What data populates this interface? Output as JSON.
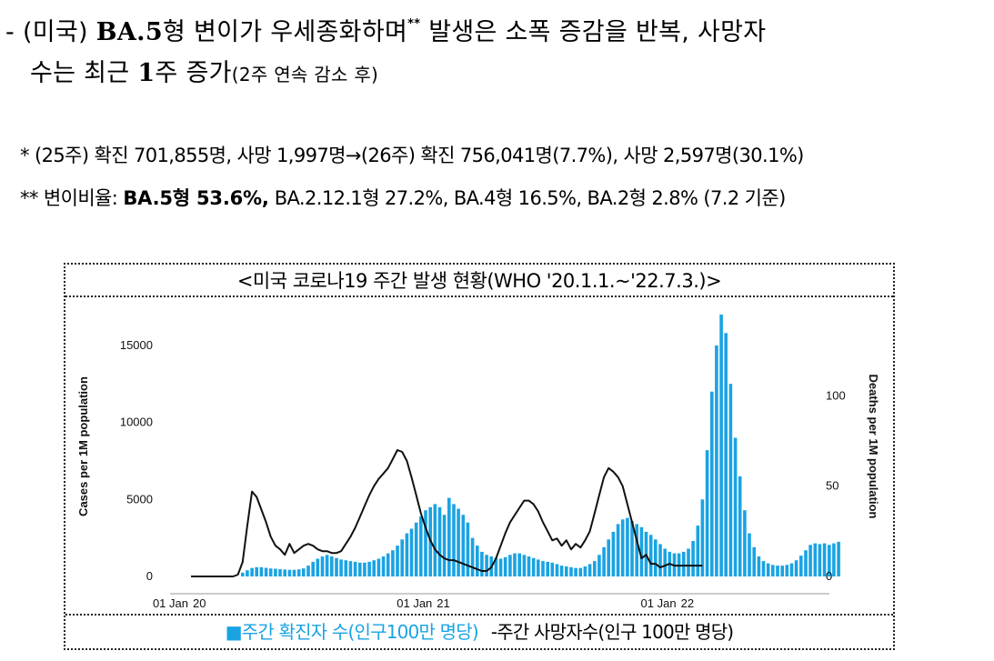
{
  "headline": {
    "dash": "- ",
    "country": "(미국) ",
    "variant": "BA.5",
    "text1": "형 변이가 우세종화하며",
    "mark": "**",
    "text2": " 발생은 소폭 증감을 반복, 사망자",
    "text3": "수는 최근 ",
    "week": "1",
    "text4": "주 증가",
    "note": "(2주 연속 감소 후)"
  },
  "notes": {
    "star1": "*",
    "line1": " (25주) 확진 701,855명, 사망 1,997명→(26주) 확진 756,041명(7.7%), 사망 2,597명(30.1%)",
    "star2": "**",
    "label2": " 변이비율: ",
    "strong2": "BA.5형 53.6%,",
    "rest2": " BA.2.12.1형 27.2%, BA.4형 16.5%, BA.2형 2.8% (7.2 기준)"
  },
  "chart": {
    "title": "<미국 코로나19 주간 발생 현황(WHO '20.1.1.~'22.7.3.)>",
    "legend_cases_label": "■주간 확진자 수(인구100만 명당)",
    "legend_deaths_label": "-주간 사망자수(인구 100만 명당)",
    "colors": {
      "cases": "#1aa3e3",
      "deaths": "#111111"
    }
  },
  "chart_data": {
    "type": "bar",
    "ylabel": "Cases per 1M population",
    "y2label": "Deaths per 1M population",
    "ylim": [
      0,
      17000
    ],
    "y2lim": [
      0,
      145
    ],
    "y_ticks": [
      0,
      5000,
      10000,
      15000
    ],
    "y2_ticks": [
      0,
      50,
      100
    ],
    "x_ticks": [
      {
        "label": "01 Jan",
        "year": "20",
        "week": 0
      },
      {
        "label": "01 Jan",
        "year": "21",
        "week": 52
      },
      {
        "label": "01 Jan",
        "year": "22",
        "week": 104
      }
    ],
    "grid": false,
    "series": [
      {
        "name": "주간 확진자 수(인구100만 명당)",
        "axis": "left",
        "values": [
          0,
          0,
          0,
          0,
          0,
          0,
          0,
          0,
          0,
          0,
          0,
          250,
          400,
          550,
          600,
          600,
          560,
          520,
          500,
          470,
          450,
          430,
          430,
          460,
          520,
          700,
          950,
          1150,
          1300,
          1400,
          1300,
          1200,
          1100,
          1050,
          1000,
          950,
          900,
          900,
          950,
          1050,
          1150,
          1300,
          1500,
          1700,
          2000,
          2400,
          2800,
          3100,
          3500,
          3900,
          4300,
          4500,
          4700,
          4500,
          4000,
          5100,
          4700,
          4400,
          4000,
          3500,
          2500,
          2000,
          1600,
          1400,
          1300,
          1200,
          1150,
          1250,
          1400,
          1500,
          1500,
          1400,
          1300,
          1200,
          1100,
          1000,
          950,
          900,
          800,
          700,
          650,
          600,
          550,
          550,
          650,
          800,
          1000,
          1400,
          1900,
          2400,
          2900,
          3400,
          3700,
          3800,
          3600,
          3400,
          3200,
          2900,
          2700,
          2400,
          2100,
          1800,
          1600,
          1500,
          1500,
          1600,
          1800,
          2300,
          3300,
          5000,
          8200,
          12000,
          15000,
          17000,
          15800,
          12500,
          9000,
          6500,
          4300,
          2800,
          1900,
          1300,
          1000,
          850,
          750,
          700,
          700,
          750,
          850,
          1050,
          1350,
          1700,
          2050,
          2150,
          2100,
          2150,
          2050,
          2150,
          2250
        ]
      },
      {
        "name": "주간 사망자수(인구 100만 명당)",
        "axis": "right",
        "values": [
          0,
          0,
          0,
          0,
          0,
          0,
          0,
          0,
          0,
          0,
          1,
          8,
          28,
          47,
          44,
          37,
          30,
          22,
          17,
          15,
          12,
          18,
          13,
          15,
          17,
          18,
          17,
          15,
          14,
          14,
          13,
          13,
          14,
          18,
          22,
          27,
          33,
          39,
          45,
          50,
          54,
          57,
          60,
          65,
          70,
          69,
          64,
          55,
          45,
          35,
          27,
          20,
          15,
          12,
          10,
          9,
          9,
          8,
          7,
          6,
          5,
          4,
          3,
          3,
          5,
          10,
          17,
          24,
          30,
          34,
          38,
          42,
          42,
          40,
          36,
          30,
          25,
          20,
          21,
          17,
          20,
          15,
          18,
          16,
          20,
          25,
          35,
          45,
          55,
          60,
          58,
          55,
          50,
          40,
          30,
          20,
          10,
          12,
          7,
          7,
          5,
          6,
          7,
          6,
          6,
          6,
          6,
          6,
          6,
          6
        ]
      }
    ]
  }
}
